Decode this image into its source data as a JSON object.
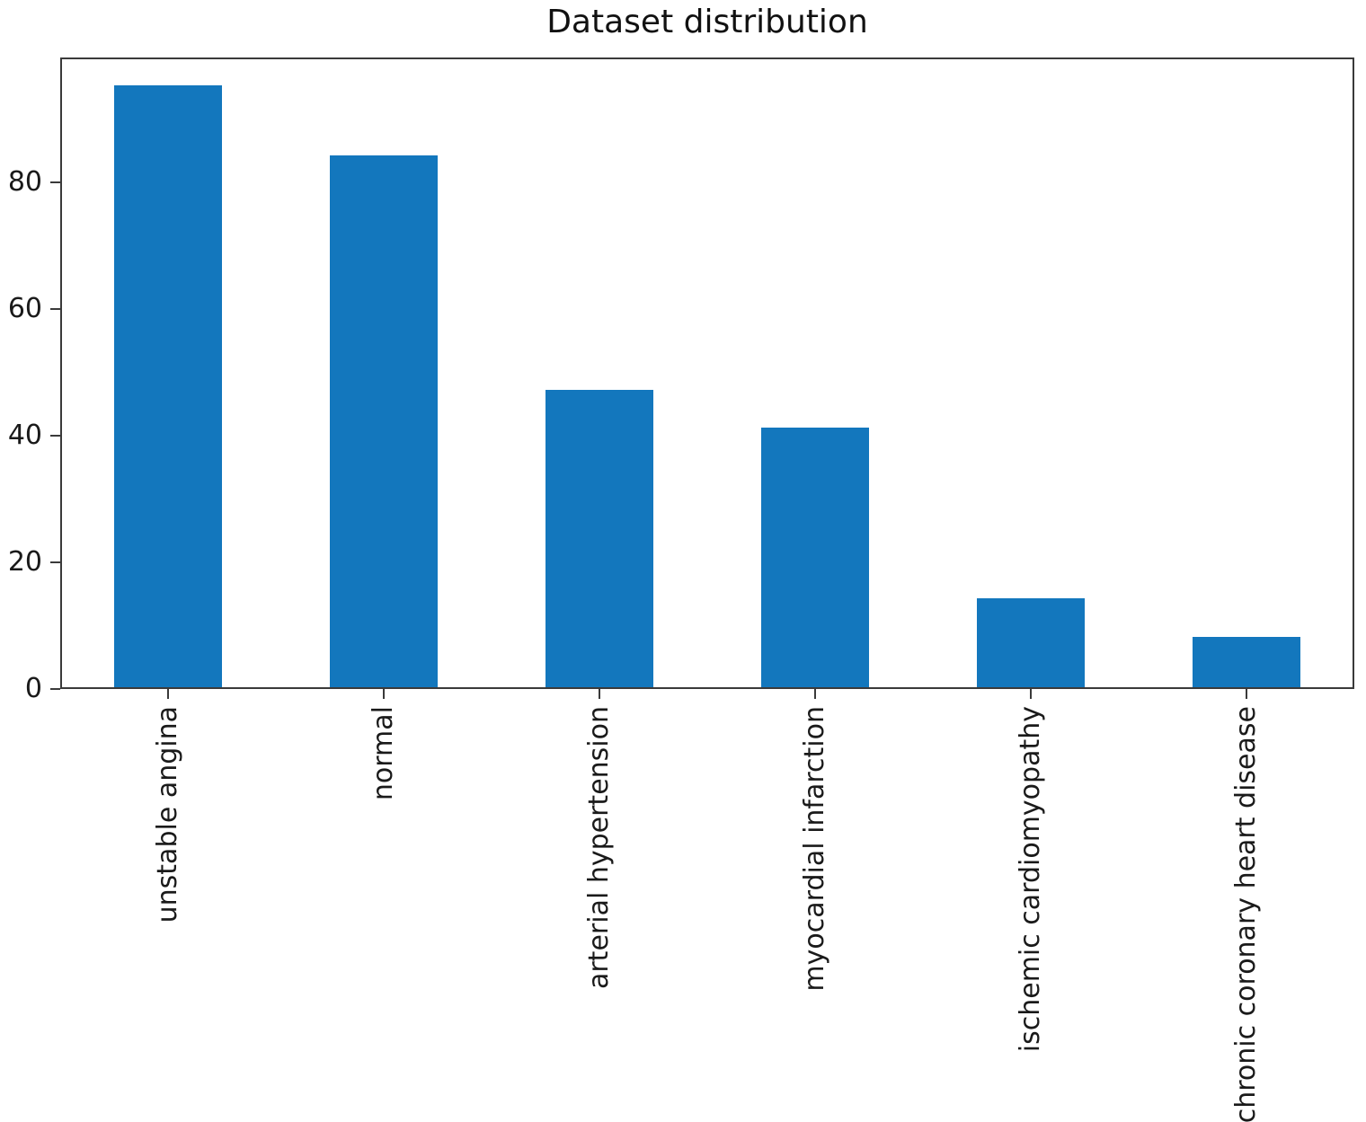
{
  "chart_data": {
    "type": "bar",
    "title": "Dataset distribution",
    "categories": [
      "unstable angina",
      "normal",
      "arterial hypertension",
      "myocardial infarction",
      "ischemic cardiomyopathy",
      "chronic coronary heart disease"
    ],
    "values": [
      95,
      84,
      47,
      41,
      14,
      8
    ],
    "xlabel": "",
    "ylabel": "",
    "ylim": [
      0,
      99.75
    ],
    "yticks": [
      0,
      20,
      40,
      60,
      80
    ],
    "xtick_label_rotation_deg": 90,
    "bar_width_fraction": 0.5,
    "grid": false,
    "legend_position": "none",
    "colors": {
      "bar": "#1377bd",
      "axis": "#3a3a3a",
      "text": "#1a1a1a"
    }
  }
}
